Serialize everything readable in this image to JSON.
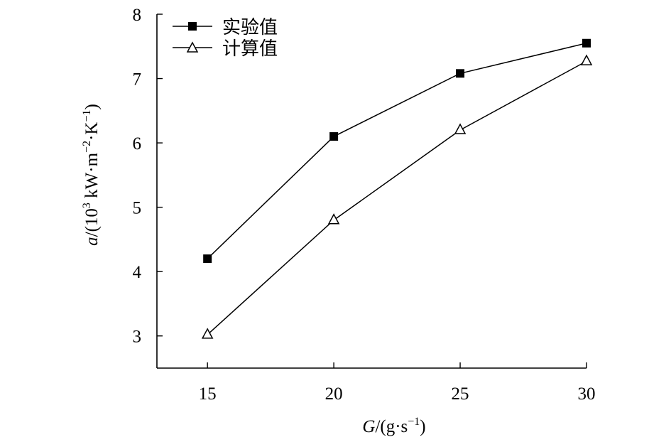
{
  "chart_data": {
    "type": "line",
    "x": [
      15,
      20,
      25,
      30
    ],
    "xticks": [
      "15",
      "20",
      "25",
      "30"
    ],
    "yticks": [
      "3",
      "4",
      "5",
      "6",
      "7",
      "8"
    ],
    "xlim": [
      13,
      30
    ],
    "ylim": [
      2.5,
      8
    ],
    "xlabel": {
      "var": "G",
      "pre": "/(g·s",
      "sup": "−1",
      "post": ")"
    },
    "ylabel": {
      "var": "a",
      "t1": "/(10",
      "s1": "3",
      "t2": " kW·m",
      "s2": "−2",
      "t3": "·K",
      "s3": "−1",
      "t4": ")"
    },
    "legend_position": "top-left",
    "grid": false,
    "series": [
      {
        "name": "实验值",
        "marker": "filled-square",
        "color": "#000000",
        "values": [
          4.2,
          6.1,
          7.08,
          7.55
        ]
      },
      {
        "name": "计算值",
        "marker": "open-triangle",
        "color": "#000000",
        "values": [
          3.02,
          4.8,
          6.2,
          7.27
        ]
      }
    ]
  }
}
